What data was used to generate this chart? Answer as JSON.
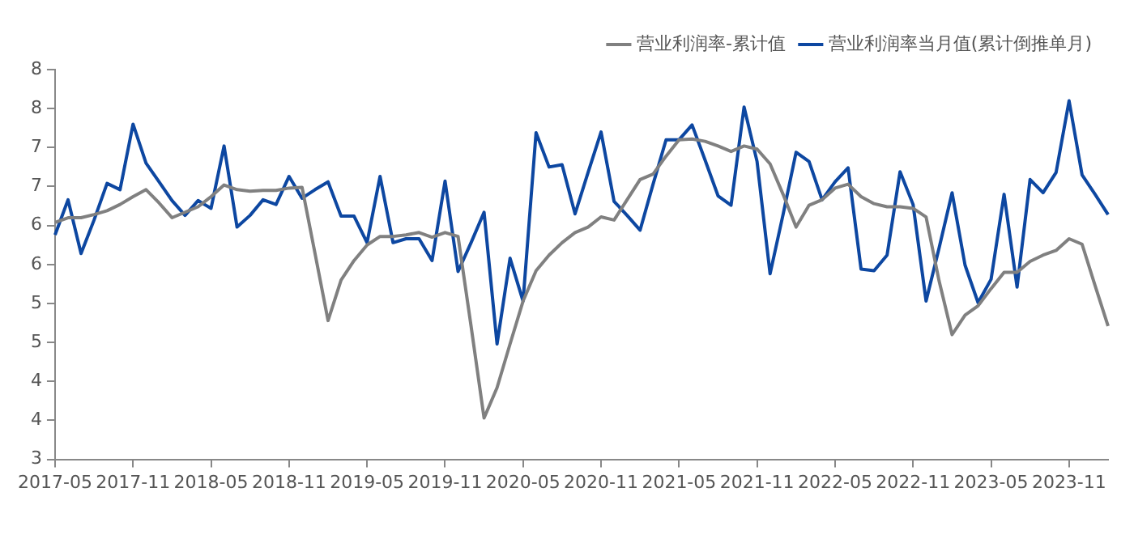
{
  "chart_data": {
    "type": "line",
    "categories": [
      "2017-05",
      null,
      null,
      null,
      null,
      null,
      "2017-11",
      null,
      null,
      null,
      null,
      null,
      "2018-05",
      null,
      null,
      null,
      null,
      null,
      "2018-11",
      null,
      null,
      null,
      null,
      null,
      "2019-05",
      null,
      null,
      null,
      null,
      null,
      "2019-11",
      null,
      null,
      null,
      null,
      null,
      "2020-05",
      null,
      null,
      null,
      null,
      null,
      "2020-11",
      null,
      null,
      null,
      null,
      null,
      "2021-05",
      null,
      null,
      null,
      null,
      null,
      "2021-11",
      null,
      null,
      null,
      null,
      null,
      "2022-05",
      null,
      null,
      null,
      null,
      null,
      "2022-11",
      null,
      null,
      null,
      null,
      null,
      "2023-05",
      null,
      null,
      null,
      null,
      null,
      "2023-11",
      null,
      null,
      null
    ],
    "series": [
      {
        "name": "营业利润率-累计值",
        "color": "#808080",
        "values": [
          6.04,
          6.1,
          6.1,
          6.14,
          6.19,
          6.27,
          6.37,
          6.46,
          6.29,
          6.1,
          6.17,
          6.24,
          6.37,
          6.52,
          6.46,
          6.44,
          6.45,
          6.45,
          6.48,
          6.49,
          5.64,
          4.78,
          5.3,
          5.55,
          5.75,
          5.86,
          5.86,
          5.88,
          5.91,
          5.85,
          5.91,
          5.86,
          4.71,
          3.53,
          3.92,
          4.48,
          5.03,
          5.42,
          5.62,
          5.78,
          5.91,
          5.98,
          6.11,
          6.07,
          6.33,
          6.59,
          6.66,
          6.89,
          7.1,
          7.11,
          7.08,
          7.02,
          6.95,
          7.02,
          6.98,
          6.79,
          6.4,
          5.98,
          6.26,
          6.33,
          6.48,
          6.53,
          6.37,
          6.28,
          6.24,
          6.24,
          6.22,
          6.11,
          5.29,
          4.6,
          4.85,
          4.97,
          5.19,
          5.4,
          5.4,
          5.54,
          5.62,
          5.68,
          5.83,
          5.76,
          5.23,
          4.71
        ]
      },
      {
        "name": "营业利润率当月值(累计倒推单月)",
        "color": "#0d47a1",
        "values": [
          5.88,
          6.33,
          5.64,
          6.07,
          6.54,
          6.46,
          7.3,
          6.8,
          6.56,
          6.32,
          6.13,
          6.32,
          6.22,
          7.02,
          5.98,
          6.13,
          6.33,
          6.27,
          6.63,
          6.35,
          6.46,
          6.56,
          6.12,
          6.12,
          5.78,
          6.63,
          5.78,
          5.83,
          5.83,
          5.55,
          6.57,
          5.41,
          5.78,
          6.17,
          4.48,
          5.58,
          5.03,
          7.19,
          6.75,
          6.78,
          6.15,
          6.68,
          7.2,
          6.31,
          6.13,
          5.94,
          6.53,
          7.1,
          7.1,
          7.29,
          6.84,
          6.38,
          6.26,
          7.52,
          6.82,
          5.38,
          6.14,
          6.94,
          6.82,
          6.33,
          6.56,
          6.74,
          5.44,
          5.42,
          5.62,
          6.69,
          6.27,
          5.03,
          5.71,
          6.42,
          5.49,
          5.01,
          5.31,
          6.4,
          5.21,
          6.59,
          6.42,
          6.68,
          7.6,
          6.65,
          6.4,
          6.14
        ]
      }
    ],
    "ylim": [
      3,
      8
    ],
    "yticks": [
      3,
      {
        "value": 3.5,
        "label": "4"
      },
      4,
      {
        "value": 4.5,
        "label": "5"
      },
      5,
      {
        "value": 5.5,
        "label": "6"
      },
      6,
      {
        "value": 6.5,
        "label": "7"
      },
      7,
      {
        "value": 7.5,
        "label": "8"
      },
      8
    ],
    "grid": false,
    "legend": "top right",
    "marker": "none",
    "line_style": "solid"
  }
}
